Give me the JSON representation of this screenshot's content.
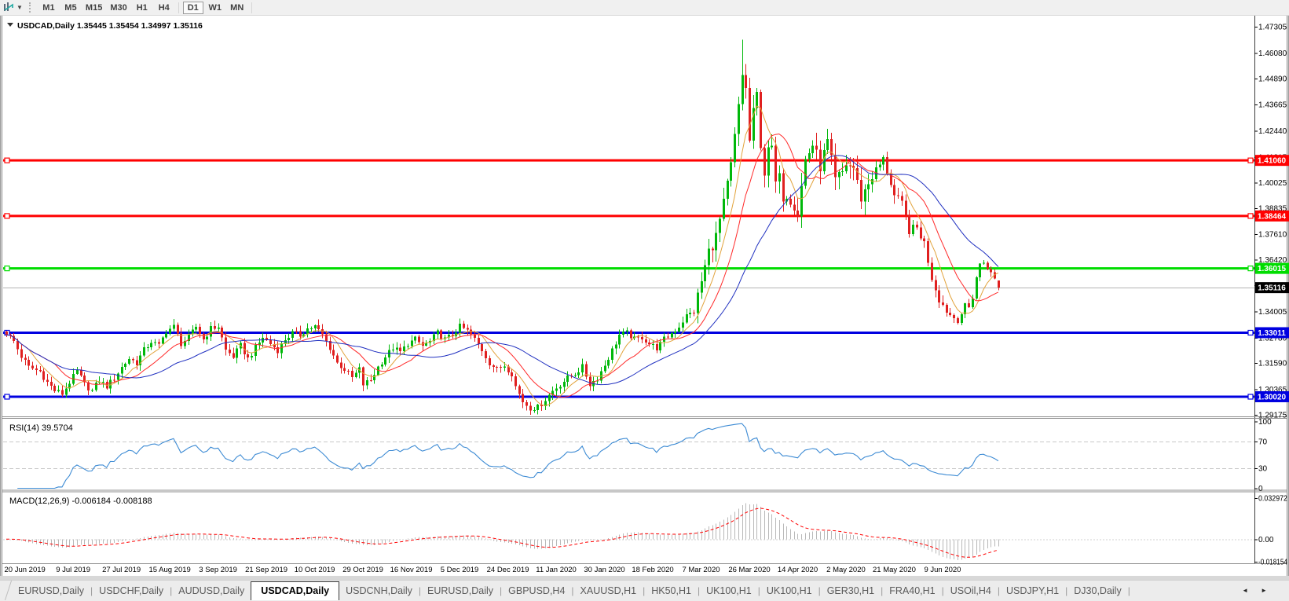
{
  "toolbar": {
    "timeframes": [
      {
        "label": "M1"
      },
      {
        "label": "M5"
      },
      {
        "label": "M15"
      },
      {
        "label": "M30"
      },
      {
        "label": "H1"
      },
      {
        "label": "H4"
      },
      {
        "label": "D1"
      },
      {
        "label": "W1"
      },
      {
        "label": "MN"
      }
    ],
    "active_timeframe": "D1"
  },
  "window_title": {
    "symbol": "USDCAD,Daily",
    "ohlc_text": "1.35445 1.35454 1.34997 1.35116"
  },
  "chart_data": {
    "type": "candlestick",
    "symbol": "USDCAD",
    "timeframe": "Daily",
    "price_axis_labels": [
      "1.47305",
      "1.46080",
      "1.44890",
      "1.43665",
      "1.42440",
      "1.41215",
      "1.40025",
      "1.38835",
      "1.37610",
      "1.36420",
      "1.35225",
      "1.34005",
      "1.32780",
      "1.31590",
      "1.30365",
      "1.29175"
    ],
    "price_range_plot": {
      "top": 1.47745,
      "bottom": 1.29102
    },
    "hlines": [
      {
        "price": 1.4106,
        "label": "1.41060",
        "color": "#ff0000"
      },
      {
        "price": 1.38464,
        "label": "1.38464",
        "color": "#ff0000"
      },
      {
        "price": 1.36015,
        "label": "1.36015",
        "color": "#00dd00"
      },
      {
        "price": 1.33011,
        "label": "1.33011",
        "color": "#0000e0"
      },
      {
        "price": 1.3002,
        "label": "1.30020",
        "color": "#0000e0"
      }
    ],
    "current_price": {
      "label": "1.35116",
      "value": 1.35116,
      "line_color": "#b4b4b4",
      "badge_color": "#000000"
    },
    "date_labels": [
      "20 Jun 2019",
      "9 Jul 2019",
      "27 Jul 2019",
      "15 Aug 2019",
      "3 Sep 2019",
      "21 Sep 2019",
      "10 Oct 2019",
      "29 Oct 2019",
      "16 Nov 2019",
      "5 Dec 2019",
      "24 Dec 2019",
      "11 Jan 2020",
      "30 Jan 2020",
      "18 Feb 2020",
      "7 Mar 2020",
      "26 Mar 2020",
      "14 Apr 2020",
      "2 May 2020",
      "21 May 2020",
      "9 Jun 2020"
    ],
    "candles_count": 268,
    "close_anchors": [
      [
        0,
        1.33
      ],
      [
        2,
        1.326
      ],
      [
        4,
        1.319
      ],
      [
        6,
        1.314
      ],
      [
        9,
        1.312
      ],
      [
        11,
        1.307
      ],
      [
        13,
        1.303
      ],
      [
        15,
        1.3016
      ],
      [
        17,
        1.307
      ],
      [
        19,
        1.312
      ],
      [
        21,
        1.306
      ],
      [
        23,
        1.303
      ],
      [
        25,
        1.308
      ],
      [
        27,
        1.305
      ],
      [
        29,
        1.309
      ],
      [
        31,
        1.314
      ],
      [
        33,
        1.318
      ],
      [
        35,
        1.316
      ],
      [
        37,
        1.322
      ],
      [
        39,
        1.326
      ],
      [
        41,
        1.324
      ],
      [
        43,
        1.331
      ],
      [
        45,
        1.333
      ],
      [
        47,
        1.325
      ],
      [
        49,
        1.328
      ],
      [
        51,
        1.333
      ],
      [
        53,
        1.327
      ],
      [
        55,
        1.332
      ],
      [
        57,
        1.333
      ],
      [
        59,
        1.322
      ],
      [
        61,
        1.319
      ],
      [
        63,
        1.324
      ],
      [
        65,
        1.318
      ],
      [
        67,
        1.323
      ],
      [
        69,
        1.328
      ],
      [
        71,
        1.325
      ],
      [
        73,
        1.322
      ],
      [
        75,
        1.327
      ],
      [
        77,
        1.33
      ],
      [
        79,
        1.329
      ],
      [
        81,
        1.332
      ],
      [
        83,
        1.333
      ],
      [
        85,
        1.329
      ],
      [
        87,
        1.323
      ],
      [
        89,
        1.316
      ],
      [
        91,
        1.313
      ],
      [
        93,
        1.309
      ],
      [
        95,
        1.313
      ],
      [
        96,
        1.306
      ],
      [
        98,
        1.308
      ],
      [
        100,
        1.314
      ],
      [
        102,
        1.319
      ],
      [
        104,
        1.323
      ],
      [
        106,
        1.321
      ],
      [
        108,
        1.325
      ],
      [
        110,
        1.327
      ],
      [
        112,
        1.324
      ],
      [
        114,
        1.326
      ],
      [
        116,
        1.33
      ],
      [
        118,
        1.327
      ],
      [
        120,
        1.329
      ],
      [
        122,
        1.333
      ],
      [
        124,
        1.331
      ],
      [
        126,
        1.327
      ],
      [
        128,
        1.322
      ],
      [
        130,
        1.316
      ],
      [
        132,
        1.313
      ],
      [
        134,
        1.315
      ],
      [
        136,
        1.311
      ],
      [
        137,
        1.305
      ],
      [
        139,
        1.298
      ],
      [
        141,
        1.295
      ],
      [
        143,
        1.2952
      ],
      [
        145,
        1.299
      ],
      [
        147,
        1.303
      ],
      [
        149,
        1.306
      ],
      [
        151,
        1.309
      ],
      [
        153,
        1.311
      ],
      [
        155,
        1.314
      ],
      [
        157,
        1.306
      ],
      [
        159,
        1.309
      ],
      [
        161,
        1.315
      ],
      [
        163,
        1.322
      ],
      [
        165,
        1.329
      ],
      [
        167,
        1.33
      ],
      [
        169,
        1.327
      ],
      [
        171,
        1.328
      ],
      [
        173,
        1.325
      ],
      [
        175,
        1.323
      ],
      [
        177,
        1.327
      ],
      [
        179,
        1.33
      ],
      [
        181,
        1.333
      ],
      [
        183,
        1.338
      ],
      [
        185,
        1.34
      ],
      [
        187,
        1.354
      ],
      [
        189,
        1.368
      ],
      [
        191,
        1.375
      ],
      [
        193,
        1.39
      ],
      [
        195,
        1.408
      ],
      [
        197,
        1.435
      ],
      [
        198,
        1.45
      ],
      [
        199,
        1.445
      ],
      [
        200,
        1.419
      ],
      [
        201,
        1.435
      ],
      [
        202,
        1.44
      ],
      [
        203,
        1.415
      ],
      [
        204,
        1.406
      ],
      [
        205,
        1.418
      ],
      [
        206,
        1.415
      ],
      [
        207,
        1.4
      ],
      [
        208,
        1.402
      ],
      [
        209,
        1.394
      ],
      [
        210,
        1.395
      ],
      [
        212,
        1.39
      ],
      [
        213,
        1.386
      ],
      [
        215,
        1.411
      ],
      [
        217,
        1.418
      ],
      [
        219,
        1.408
      ],
      [
        221,
        1.419
      ],
      [
        223,
        1.401
      ],
      [
        225,
        1.405
      ],
      [
        226,
        1.409
      ],
      [
        228,
        1.407
      ],
      [
        230,
        1.393
      ],
      [
        232,
        1.4
      ],
      [
        234,
        1.406
      ],
      [
        236,
        1.411
      ],
      [
        238,
        1.4
      ],
      [
        239,
        1.394
      ],
      [
        241,
        1.39
      ],
      [
        243,
        1.378
      ],
      [
        245,
        1.379
      ],
      [
        247,
        1.372
      ],
      [
        249,
        1.356
      ],
      [
        251,
        1.346
      ],
      [
        253,
        1.34
      ],
      [
        255,
        1.337
      ],
      [
        256,
        1.3355
      ],
      [
        257,
        1.339
      ],
      [
        258,
        1.343
      ],
      [
        259,
        1.342
      ],
      [
        260,
        1.3465
      ],
      [
        261,
        1.356
      ],
      [
        262,
        1.362
      ],
      [
        263,
        1.363
      ],
      [
        264,
        1.3605
      ],
      [
        265,
        1.358
      ],
      [
        266,
        1.3552
      ],
      [
        267,
        1.35116
      ]
    ],
    "spike_high": [
      198,
      1.467
    ],
    "last_candle": {
      "open": 1.35445,
      "high": 1.35454,
      "low": 1.34997,
      "close": 1.35116
    },
    "moving_averages": [
      {
        "period": 7,
        "color": "#e2a33c"
      },
      {
        "period": 14,
        "color": "#ff2a2a"
      },
      {
        "period": 30,
        "color": "#2030c0"
      }
    ],
    "colors": {
      "bull": "#00b80a",
      "bear": "#e02020"
    },
    "rsi": {
      "label": "RSI(14)",
      "value_text": "39.5704",
      "period": 14,
      "color": "#3d8bd4",
      "axis": [
        {
          "label": "100",
          "value": 100
        },
        {
          "label": "70",
          "value": 70
        },
        {
          "label": "30",
          "value": 30
        },
        {
          "label": "0",
          "value": 0
        }
      ],
      "levels": [
        70,
        30
      ],
      "range": {
        "top": 104.1,
        "bottom": -2.9
      }
    },
    "macd": {
      "label": "MACD(12,26,9)",
      "values_text": "-0.006184 -0.008188",
      "fast": 12,
      "slow": 26,
      "signal": 9,
      "axis": [
        {
          "label": "0.032972",
          "value": 0.032972
        },
        {
          "label": "0.00",
          "value": 0
        },
        {
          "label": "-0.018154",
          "value": -0.018154
        }
      ],
      "range": {
        "top": 0.03733,
        "bottom": -0.01929
      },
      "bar_color": "#b8b8b8",
      "signal_color": "#ff0000"
    }
  },
  "tabs": {
    "items": [
      {
        "label": "EURUSD,Daily"
      },
      {
        "label": "USDCHF,Daily"
      },
      {
        "label": "AUDUSD,Daily"
      },
      {
        "label": "USDCAD,Daily",
        "active": true
      },
      {
        "label": "USDCNH,Daily"
      },
      {
        "label": "EURUSD,Daily"
      },
      {
        "label": "GBPUSD,H4"
      },
      {
        "label": "XAUUSD,H1"
      },
      {
        "label": "HK50,H1"
      },
      {
        "label": "UK100,H1"
      },
      {
        "label": "UK100,H1"
      },
      {
        "label": "GER30,H1"
      },
      {
        "label": "FRA40,H1"
      },
      {
        "label": "USOil,H4"
      },
      {
        "label": "USDJPY,H1"
      },
      {
        "label": "DJ30,Daily"
      }
    ]
  },
  "tab_nav": {
    "left": "◄",
    "right": "►"
  }
}
